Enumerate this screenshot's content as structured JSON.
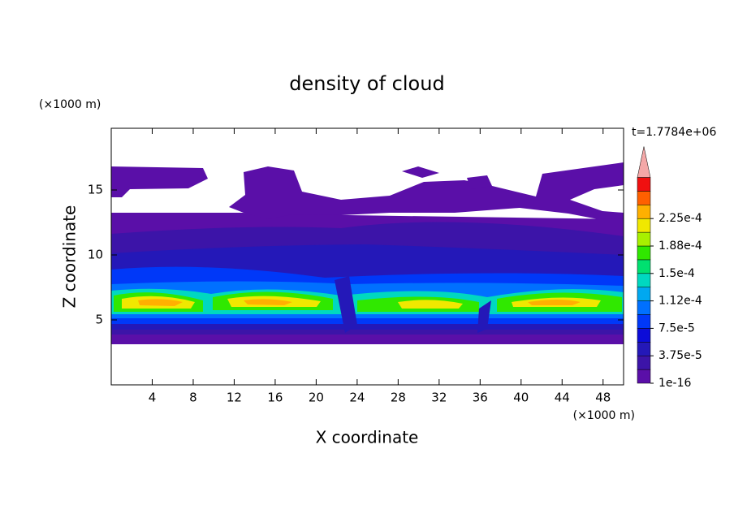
{
  "chart_data": {
    "type": "contour",
    "title": "density of cloud",
    "x_label": "X coordinate",
    "y_label": "Z coordinate",
    "x_unit": "(×1000 m)",
    "y_unit": "(×1000 m)",
    "annotation": "t=1.7784e+06",
    "xlim": [
      0,
      50
    ],
    "ylim": [
      0,
      19.75
    ],
    "xticks": [
      4,
      8,
      12,
      16,
      20,
      24,
      28,
      32,
      36,
      40,
      44,
      48
    ],
    "yticks": [
      5,
      10,
      15
    ],
    "colorbar": {
      "ticks": [
        {
          "value": 1e-16,
          "label": "1e-16"
        },
        {
          "value": 3.75e-05,
          "label": "3.75e-5"
        },
        {
          "value": 7.5e-05,
          "label": "7.5e-5"
        },
        {
          "value": 0.000112,
          "label": "1.12e-4"
        },
        {
          "value": 0.00015,
          "label": "1.5e-4"
        },
        {
          "value": 0.000188,
          "label": "1.88e-4"
        },
        {
          "value": 0.000225,
          "label": "2.25e-4"
        }
      ],
      "colors": [
        "#5a0fa8",
        "#3c14a8",
        "#2418b8",
        "#0c0cd8",
        "#0038f8",
        "#0070ff",
        "#00a8f0",
        "#00d8c0",
        "#00e070",
        "#30e800",
        "#a8f000",
        "#f0e800",
        "#ffb000",
        "#ff6000",
        "#f01010"
      ],
      "extend_color": "#f4a8a8"
    }
  }
}
